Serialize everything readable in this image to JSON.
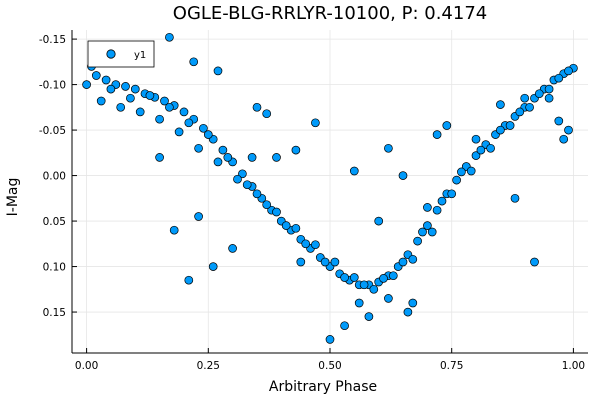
{
  "chart_data": {
    "type": "scatter",
    "title": "OGLE-BLG-RRLYR-10100, P: 0.4174",
    "xlabel": "Arbitrary Phase",
    "ylabel": "I-Mag",
    "xlim": [
      -0.03,
      1.03
    ],
    "ylim": [
      0.195,
      -0.16
    ],
    "y_inverted": true,
    "grid": true,
    "legend_position": "top-left",
    "x_ticks": [
      0.0,
      0.25,
      0.5,
      0.75,
      1.0
    ],
    "x_tick_labels": [
      "0.00",
      "0.25",
      "0.50",
      "0.75",
      "1.00"
    ],
    "y_ticks": [
      -0.15,
      -0.1,
      -0.05,
      0.0,
      0.05,
      0.1,
      0.15
    ],
    "y_tick_labels": [
      "-0.15",
      "-0.10",
      "-0.05",
      "0.00",
      "0.05",
      "0.10",
      "0.15"
    ],
    "marker_color": "#009AFA",
    "marker_edge": "#000000",
    "series": [
      {
        "name": "y1",
        "x": [
          0.0,
          0.02,
          0.04,
          0.06,
          0.08,
          0.1,
          0.12,
          0.14,
          0.16,
          0.18,
          0.2,
          0.22,
          0.24,
          0.26,
          0.28,
          0.3,
          0.32,
          0.34,
          0.36,
          0.38,
          0.4,
          0.42,
          0.44,
          0.46,
          0.48,
          0.5,
          0.52,
          0.54,
          0.56,
          0.58,
          0.6,
          0.62,
          0.64,
          0.66,
          0.68,
          0.7,
          0.72,
          0.74,
          0.76,
          0.78,
          0.8,
          0.82,
          0.84,
          0.86,
          0.88,
          0.9,
          0.92,
          0.94,
          0.96,
          0.98,
          1.0,
          0.01,
          0.05,
          0.09,
          0.13,
          0.17,
          0.21,
          0.25,
          0.29,
          0.33,
          0.37,
          0.41,
          0.45,
          0.49,
          0.53,
          0.57,
          0.61,
          0.65,
          0.69,
          0.73,
          0.77,
          0.81,
          0.85,
          0.89,
          0.93,
          0.97,
          0.03,
          0.07,
          0.11,
          0.15,
          0.19,
          0.23,
          0.27,
          0.31,
          0.35,
          0.39,
          0.43,
          0.47,
          0.51,
          0.55,
          0.59,
          0.63,
          0.67,
          0.71,
          0.75,
          0.79,
          0.83,
          0.87,
          0.91,
          0.95,
          0.99,
          0.35,
          0.37,
          0.39,
          0.43,
          0.47,
          0.55,
          0.6,
          0.62,
          0.65,
          0.7,
          0.72,
          0.74,
          0.8,
          0.85,
          0.9,
          0.17,
          0.22,
          0.27,
          0.3,
          0.34,
          0.23,
          0.18,
          0.15,
          0.26,
          0.21,
          0.5,
          0.56,
          0.58,
          0.53,
          0.62,
          0.67,
          0.44,
          0.66,
          0.92,
          0.95,
          0.97,
          0.99,
          0.98,
          0.88
        ],
        "y": [
          -0.1,
          -0.11,
          -0.105,
          -0.1,
          -0.098,
          -0.095,
          -0.09,
          -0.086,
          -0.082,
          -0.077,
          -0.07,
          -0.062,
          -0.052,
          -0.04,
          -0.028,
          -0.015,
          -0.002,
          0.012,
          0.025,
          0.038,
          0.05,
          0.06,
          0.07,
          0.08,
          0.09,
          0.1,
          0.108,
          0.115,
          0.12,
          0.12,
          0.117,
          0.11,
          0.1,
          0.087,
          0.072,
          0.055,
          0.038,
          0.02,
          0.005,
          -0.01,
          -0.022,
          -0.034,
          -0.045,
          -0.055,
          -0.065,
          -0.075,
          -0.085,
          -0.095,
          -0.105,
          -0.112,
          -0.118,
          -0.12,
          -0.095,
          -0.085,
          -0.088,
          -0.075,
          -0.058,
          -0.045,
          -0.02,
          0.01,
          0.032,
          0.055,
          0.075,
          0.095,
          0.112,
          0.12,
          0.113,
          0.095,
          0.062,
          0.028,
          -0.004,
          -0.028,
          -0.05,
          -0.07,
          -0.09,
          -0.107,
          -0.082,
          -0.075,
          -0.07,
          -0.062,
          -0.048,
          -0.03,
          -0.015,
          0.004,
          0.02,
          0.04,
          0.058,
          0.076,
          0.095,
          0.112,
          0.125,
          0.11,
          0.092,
          0.062,
          0.02,
          -0.005,
          -0.03,
          -0.055,
          -0.075,
          -0.095,
          -0.115,
          -0.075,
          -0.068,
          -0.02,
          -0.028,
          -0.058,
          -0.005,
          0.05,
          -0.03,
          0.0,
          0.035,
          -0.045,
          -0.055,
          -0.04,
          -0.078,
          -0.085,
          -0.152,
          -0.125,
          -0.115,
          0.08,
          -0.02,
          0.045,
          0.06,
          -0.02,
          0.1,
          0.115,
          0.18,
          0.14,
          0.155,
          0.165,
          0.135,
          0.14,
          0.095,
          0.15,
          0.095,
          -0.085,
          -0.06,
          -0.05,
          -0.04,
          0.025
        ]
      }
    ],
    "legend": {
      "entries": [
        "y1"
      ]
    }
  }
}
